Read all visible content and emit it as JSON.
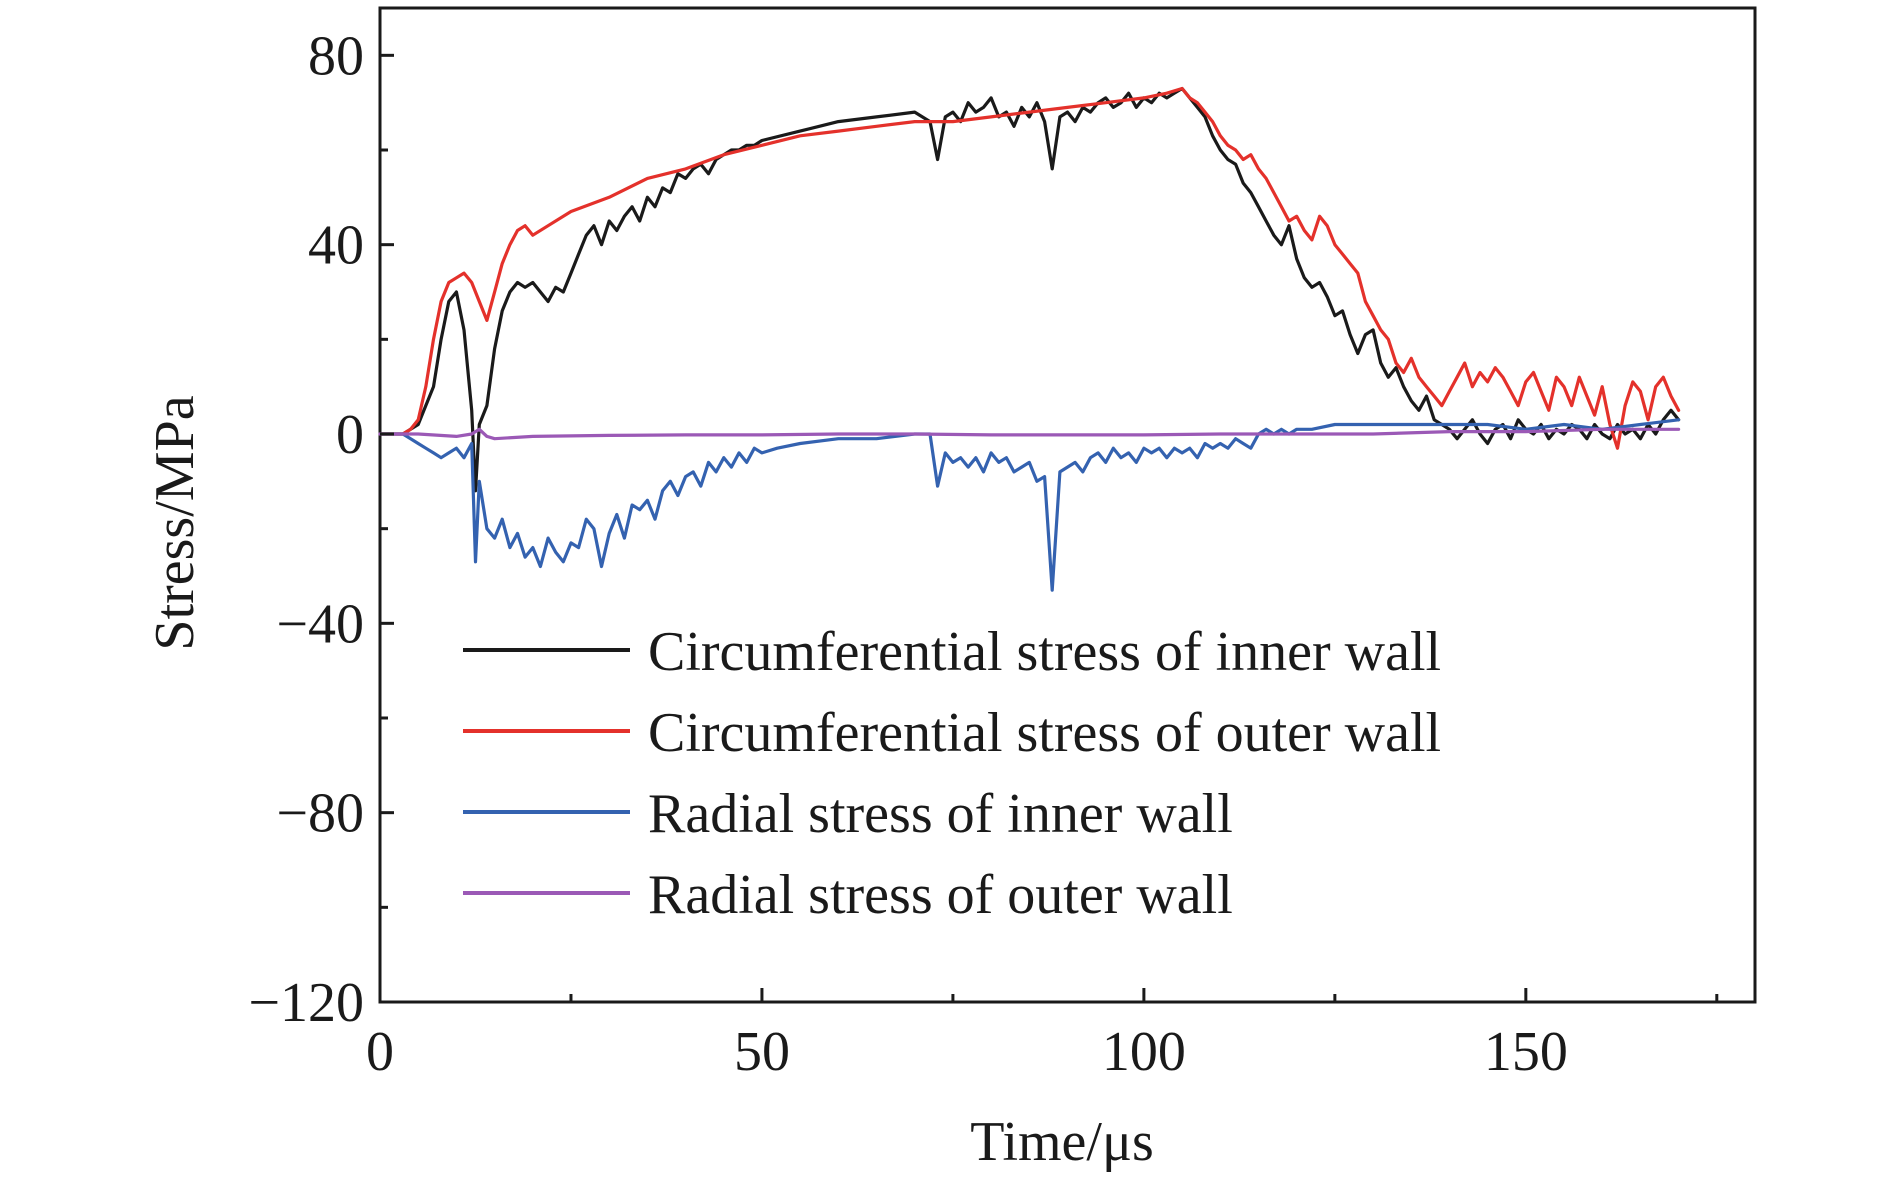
{
  "chart_data": {
    "type": "line",
    "title": "",
    "xlabel": "Time/μs",
    "ylabel": "Stress/MPa",
    "xlim": [
      0,
      180
    ],
    "ylim": [
      -120,
      80
    ],
    "grid": false,
    "legend_position": "lower-center",
    "x_ticks": [
      {
        "value": 0,
        "label": "0"
      },
      {
        "value": 50,
        "label": "50"
      },
      {
        "value": 100,
        "label": "100"
      },
      {
        "value": 150,
        "label": "150"
      }
    ],
    "y_ticks": [
      {
        "value": 80,
        "label": "80"
      },
      {
        "value": 40,
        "label": "40"
      },
      {
        "value": 0,
        "label": "0"
      },
      {
        "value": -40,
        "label": "−40"
      },
      {
        "value": -80,
        "label": "−80"
      },
      {
        "value": -120,
        "label": "−120"
      }
    ],
    "series": [
      {
        "name": "Circumferential stress of inner wall",
        "color": "#1a1a1a",
        "x": [
          0,
          3,
          4,
          5,
          6,
          7,
          8,
          9,
          10,
          11,
          12,
          12.5,
          13,
          14,
          15,
          16,
          17,
          18,
          19,
          20,
          21,
          22,
          23,
          24,
          25,
          26,
          27,
          28,
          29,
          30,
          31,
          32,
          33,
          34,
          35,
          36,
          37,
          38,
          39,
          40,
          41,
          42,
          43,
          44,
          45,
          46,
          47,
          48,
          49,
          50,
          55,
          60,
          65,
          70,
          72,
          73,
          74,
          75,
          76,
          77,
          78,
          79,
          80,
          81,
          82,
          83,
          84,
          85,
          86,
          87,
          88,
          89,
          90,
          91,
          92,
          93,
          94,
          95,
          96,
          97,
          98,
          99,
          100,
          101,
          102,
          103,
          104,
          105,
          106,
          107,
          108,
          109,
          110,
          111,
          112,
          113,
          114,
          115,
          116,
          117,
          118,
          119,
          120,
          121,
          122,
          123,
          124,
          125,
          126,
          127,
          128,
          129,
          130,
          131,
          132,
          133,
          134,
          135,
          136,
          137,
          138,
          139,
          140,
          141,
          142,
          143,
          144,
          145,
          146,
          147,
          148,
          149,
          150,
          151,
          152,
          153,
          154,
          155,
          156,
          157,
          158,
          159,
          160,
          161,
          162,
          163,
          164,
          165,
          166,
          167,
          168,
          169,
          170
        ],
        "y": [
          0,
          0,
          1,
          2,
          6,
          10,
          20,
          28,
          30,
          22,
          5,
          -12,
          2,
          6,
          18,
          26,
          30,
          32,
          31,
          32,
          30,
          28,
          31,
          30,
          34,
          38,
          42,
          44,
          40,
          45,
          43,
          46,
          48,
          45,
          50,
          48,
          52,
          51,
          55,
          54,
          56,
          57,
          55,
          58,
          59,
          60,
          60,
          61,
          61,
          62,
          64,
          66,
          67,
          68,
          66,
          58,
          67,
          68,
          66,
          70,
          68,
          69,
          71,
          67,
          68,
          65,
          69,
          67,
          70,
          66,
          56,
          67,
          68,
          66,
          69,
          68,
          70,
          71,
          69,
          70,
          72,
          69,
          71,
          70,
          72,
          71,
          72,
          73,
          71,
          69,
          67,
          63,
          60,
          58,
          57,
          53,
          51,
          48,
          45,
          42,
          40,
          44,
          37,
          33,
          31,
          32,
          29,
          25,
          26,
          21,
          17,
          21,
          22,
          15,
          12,
          14,
          10,
          7,
          5,
          8,
          3,
          2,
          1,
          -1,
          1,
          3,
          0,
          -2,
          1,
          2,
          -1,
          3,
          1,
          0,
          2,
          -1,
          1,
          0,
          2,
          1,
          -1,
          2,
          0,
          -1,
          2,
          0,
          1,
          -1,
          2,
          0,
          3,
          5,
          3
        ],
        "_note_ignored": ""
      },
      {
        "name": "Circumferential stress of outer wall",
        "color": "#e4312b",
        "x": [
          0,
          3,
          4,
          5,
          6,
          7,
          8,
          9,
          10,
          11,
          12,
          13,
          14,
          15,
          16,
          17,
          18,
          19,
          20,
          22,
          25,
          30,
          35,
          40,
          45,
          50,
          55,
          60,
          65,
          70,
          75,
          80,
          85,
          90,
          95,
          100,
          103,
          105,
          106,
          107,
          108,
          109,
          110,
          111,
          112,
          113,
          114,
          115,
          116,
          117,
          118,
          119,
          120,
          121,
          122,
          123,
          124,
          125,
          126,
          127,
          128,
          129,
          130,
          131,
          132,
          133,
          134,
          135,
          136,
          137,
          138,
          139,
          140,
          141,
          142,
          143,
          144,
          145,
          146,
          147,
          148,
          149,
          150,
          151,
          152,
          153,
          154,
          155,
          156,
          157,
          158,
          159,
          160,
          161,
          162,
          163,
          164,
          165,
          166,
          167,
          168,
          169,
          170
        ],
        "y": [
          0,
          0,
          1,
          3,
          10,
          20,
          28,
          32,
          33,
          34,
          32,
          28,
          24,
          30,
          36,
          40,
          43,
          44,
          42,
          44,
          47,
          50,
          54,
          56,
          59,
          61,
          63,
          64,
          65,
          66,
          66,
          67,
          68,
          69,
          70,
          71,
          72,
          73,
          71,
          70,
          68,
          66,
          63,
          61,
          60,
          58,
          59,
          56,
          54,
          51,
          48,
          45,
          46,
          43,
          41,
          46,
          44,
          40,
          38,
          36,
          34,
          28,
          25,
          22,
          20,
          15,
          13,
          16,
          12,
          10,
          8,
          6,
          9,
          12,
          15,
          10,
          13,
          11,
          14,
          12,
          9,
          6,
          11,
          13,
          9,
          5,
          12,
          10,
          6,
          12,
          8,
          4,
          10,
          2,
          -3,
          6,
          11,
          9,
          3,
          10,
          12,
          8,
          5
        ],
        "_note_ignored": ""
      },
      {
        "name": "Radial stress of inner wall",
        "color": "#3462b0",
        "x": [
          0,
          3,
          4,
          5,
          6,
          7,
          8,
          9,
          10,
          11,
          12,
          12.5,
          13,
          14,
          15,
          16,
          17,
          18,
          19,
          20,
          21,
          22,
          23,
          24,
          25,
          26,
          27,
          28,
          29,
          30,
          31,
          32,
          33,
          34,
          35,
          36,
          37,
          38,
          39,
          40,
          41,
          42,
          43,
          44,
          45,
          46,
          47,
          48,
          49,
          50,
          52,
          55,
          60,
          65,
          70,
          72,
          73,
          74,
          75,
          76,
          77,
          78,
          79,
          80,
          81,
          82,
          83,
          84,
          85,
          86,
          87,
          88,
          89,
          90,
          91,
          92,
          93,
          94,
          95,
          96,
          97,
          98,
          99,
          100,
          101,
          102,
          103,
          104,
          105,
          106,
          107,
          108,
          109,
          110,
          111,
          112,
          113,
          114,
          115,
          116,
          117,
          118,
          119,
          120,
          122,
          125,
          128,
          130,
          135,
          140,
          145,
          150,
          155,
          160,
          165,
          170
        ],
        "y": [
          0,
          0,
          -1,
          -2,
          -3,
          -4,
          -5,
          -4,
          -3,
          -5,
          -2,
          -27,
          -10,
          -20,
          -22,
          -18,
          -24,
          -21,
          -26,
          -24,
          -28,
          -22,
          -25,
          -27,
          -23,
          -24,
          -18,
          -20,
          -28,
          -21,
          -17,
          -22,
          -15,
          -16,
          -14,
          -18,
          -12,
          -10,
          -13,
          -9,
          -8,
          -11,
          -6,
          -8,
          -5,
          -7,
          -4,
          -6,
          -3,
          -4,
          -3,
          -2,
          -1,
          -1,
          0,
          0,
          -11,
          -4,
          -6,
          -5,
          -7,
          -5,
          -8,
          -4,
          -6,
          -5,
          -8,
          -7,
          -6,
          -10,
          -9,
          -33,
          -8,
          -7,
          -6,
          -8,
          -5,
          -4,
          -6,
          -3,
          -5,
          -4,
          -6,
          -3,
          -4,
          -3,
          -5,
          -3,
          -4,
          -3,
          -5,
          -2,
          -3,
          -2,
          -3,
          -1,
          -2,
          -3,
          0,
          1,
          0,
          1,
          0,
          1,
          1,
          2,
          2,
          2,
          2,
          2,
          2,
          1,
          2,
          1,
          2,
          3
        ],
        "_note_ignored": ""
      },
      {
        "name": "Radial stress of outer wall",
        "color": "#9b59b6",
        "x": [
          0,
          5,
          10,
          12,
          13,
          14,
          15,
          20,
          30,
          40,
          50,
          60,
          70,
          80,
          90,
          100,
          110,
          120,
          130,
          140,
          150,
          160,
          170
        ],
        "y": [
          0,
          0,
          -0.5,
          0,
          1,
          -0.5,
          -1,
          -0.5,
          -0.3,
          -0.2,
          -0.2,
          0,
          0,
          -0.2,
          -0.2,
          -0.2,
          0,
          0,
          0,
          0.5,
          0.5,
          1,
          1
        ],
        "_note_ignored": ""
      }
    ]
  }
}
